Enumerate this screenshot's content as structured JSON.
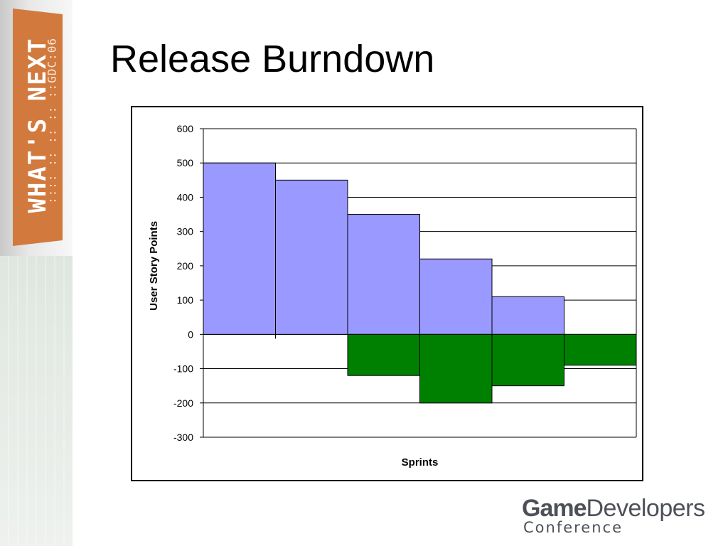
{
  "slide": {
    "title": "Release Burndown"
  },
  "sidebar": {
    "banner_text": "WHAT'S NEXT",
    "banner_sub": ":::: :: :: :: ::GDC:06",
    "banner_color": "#d2793e"
  },
  "logo": {
    "game": "Game",
    "developers": "Developers",
    "conference": "Conference"
  },
  "chart_data": {
    "type": "bar",
    "xlabel": "Sprints",
    "ylabel": "User Story Points",
    "ylim": [
      -300,
      600
    ],
    "yticks": [
      600,
      500,
      400,
      300,
      200,
      100,
      0,
      -100,
      -200,
      -300
    ],
    "grid": true,
    "legend": "none",
    "categories": [
      "",
      "",
      "",
      "",
      "",
      ""
    ],
    "series": [
      {
        "values": [
          500,
          450,
          350,
          220,
          110,
          0
        ],
        "color": "#9999ff"
      },
      {
        "values": [
          0,
          0,
          -120,
          -200,
          -150,
          -90
        ],
        "color": "#008000"
      }
    ]
  }
}
